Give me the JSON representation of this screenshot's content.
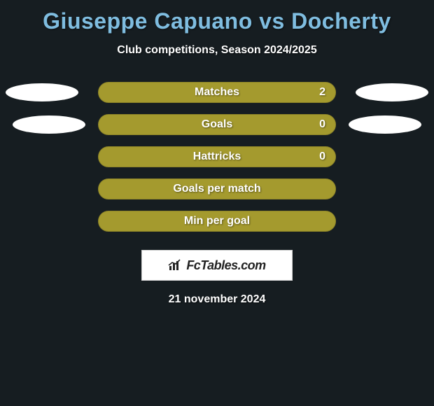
{
  "title": "Giuseppe Capuano vs Docherty",
  "subtitle": "Club competitions, Season 2024/2025",
  "bar_colors": {
    "olive": "#a49a2e",
    "olive_border": "#8e8528"
  },
  "oval_color": "#ffffff",
  "background_color": "#161d21",
  "title_color": "#7fbde0",
  "text_color": "#ffffff",
  "stats": [
    {
      "label": "Matches",
      "value_right": "2",
      "show_value": true,
      "show_ovals": true,
      "oval_left_x": 8,
      "oval_right_x": 8
    },
    {
      "label": "Goals",
      "value_right": "0",
      "show_value": true,
      "show_ovals": true,
      "oval_left_x": 18,
      "oval_right_x": 18
    },
    {
      "label": "Hattricks",
      "value_right": "0",
      "show_value": true,
      "show_ovals": false
    },
    {
      "label": "Goals per match",
      "value_right": "",
      "show_value": false,
      "show_ovals": false
    },
    {
      "label": "Min per goal",
      "value_right": "",
      "show_value": false,
      "show_ovals": false
    }
  ],
  "logo_text": "FcTables.com",
  "date_text": "21 november 2024"
}
